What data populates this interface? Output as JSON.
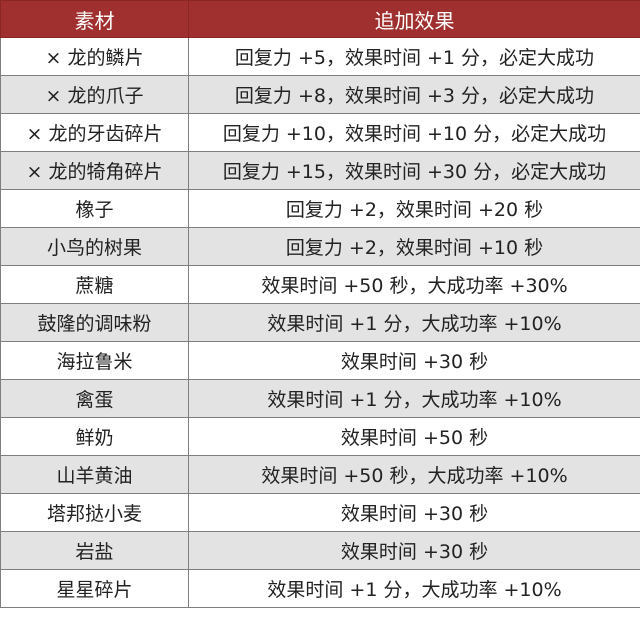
{
  "header": {
    "col1": "素材",
    "col2": "追加效果"
  },
  "rows": [
    {
      "material": "× 龙的鳞片",
      "effect": "回复力 +5，效果时间 +1 分，必定大成功"
    },
    {
      "material": "× 龙的爪子",
      "effect": "回复力 +8，效果时间 +3 分，必定大成功"
    },
    {
      "material": "× 龙的牙齿碎片",
      "effect": "回复力 +10，效果时间 +10 分，必定大成功"
    },
    {
      "material": "× 龙的犄角碎片",
      "effect": "回复力 +15，效果时间 +30 分，必定大成功"
    },
    {
      "material": "橡子",
      "effect": "回复力 +2，效果时间 +20 秒"
    },
    {
      "material": "小鸟的树果",
      "effect": "回复力 +2，效果时间 +10 秒"
    },
    {
      "material": "蔗糖",
      "effect": "效果时间 +50 秒，大成功率 +30%"
    },
    {
      "material": "鼓隆的调味粉",
      "effect": "效果时间 +1 分，大成功率 +10%"
    },
    {
      "material": "海拉鲁米",
      "effect": "效果时间 +30 秒"
    },
    {
      "material": "禽蛋",
      "effect": "效果时间 +1 分，大成功率 +10%"
    },
    {
      "material": "鲜奶",
      "effect": "效果时间 +50 秒"
    },
    {
      "material": "山羊黄油",
      "effect": "效果时间 +50 秒，大成功率 +10%"
    },
    {
      "material": "塔邦挞小麦",
      "effect": "效果时间 +30 秒"
    },
    {
      "material": "岩盐",
      "effect": "效果时间 +30 秒"
    },
    {
      "material": "星星碎片",
      "effect": "效果时间 +1 分，大成功率 +10%"
    }
  ],
  "colors": {
    "header_bg": "#a0302f",
    "header_text": "#ffffff",
    "alt_row_bg": "#e3e3e3",
    "border": "#7f7f7f"
  }
}
